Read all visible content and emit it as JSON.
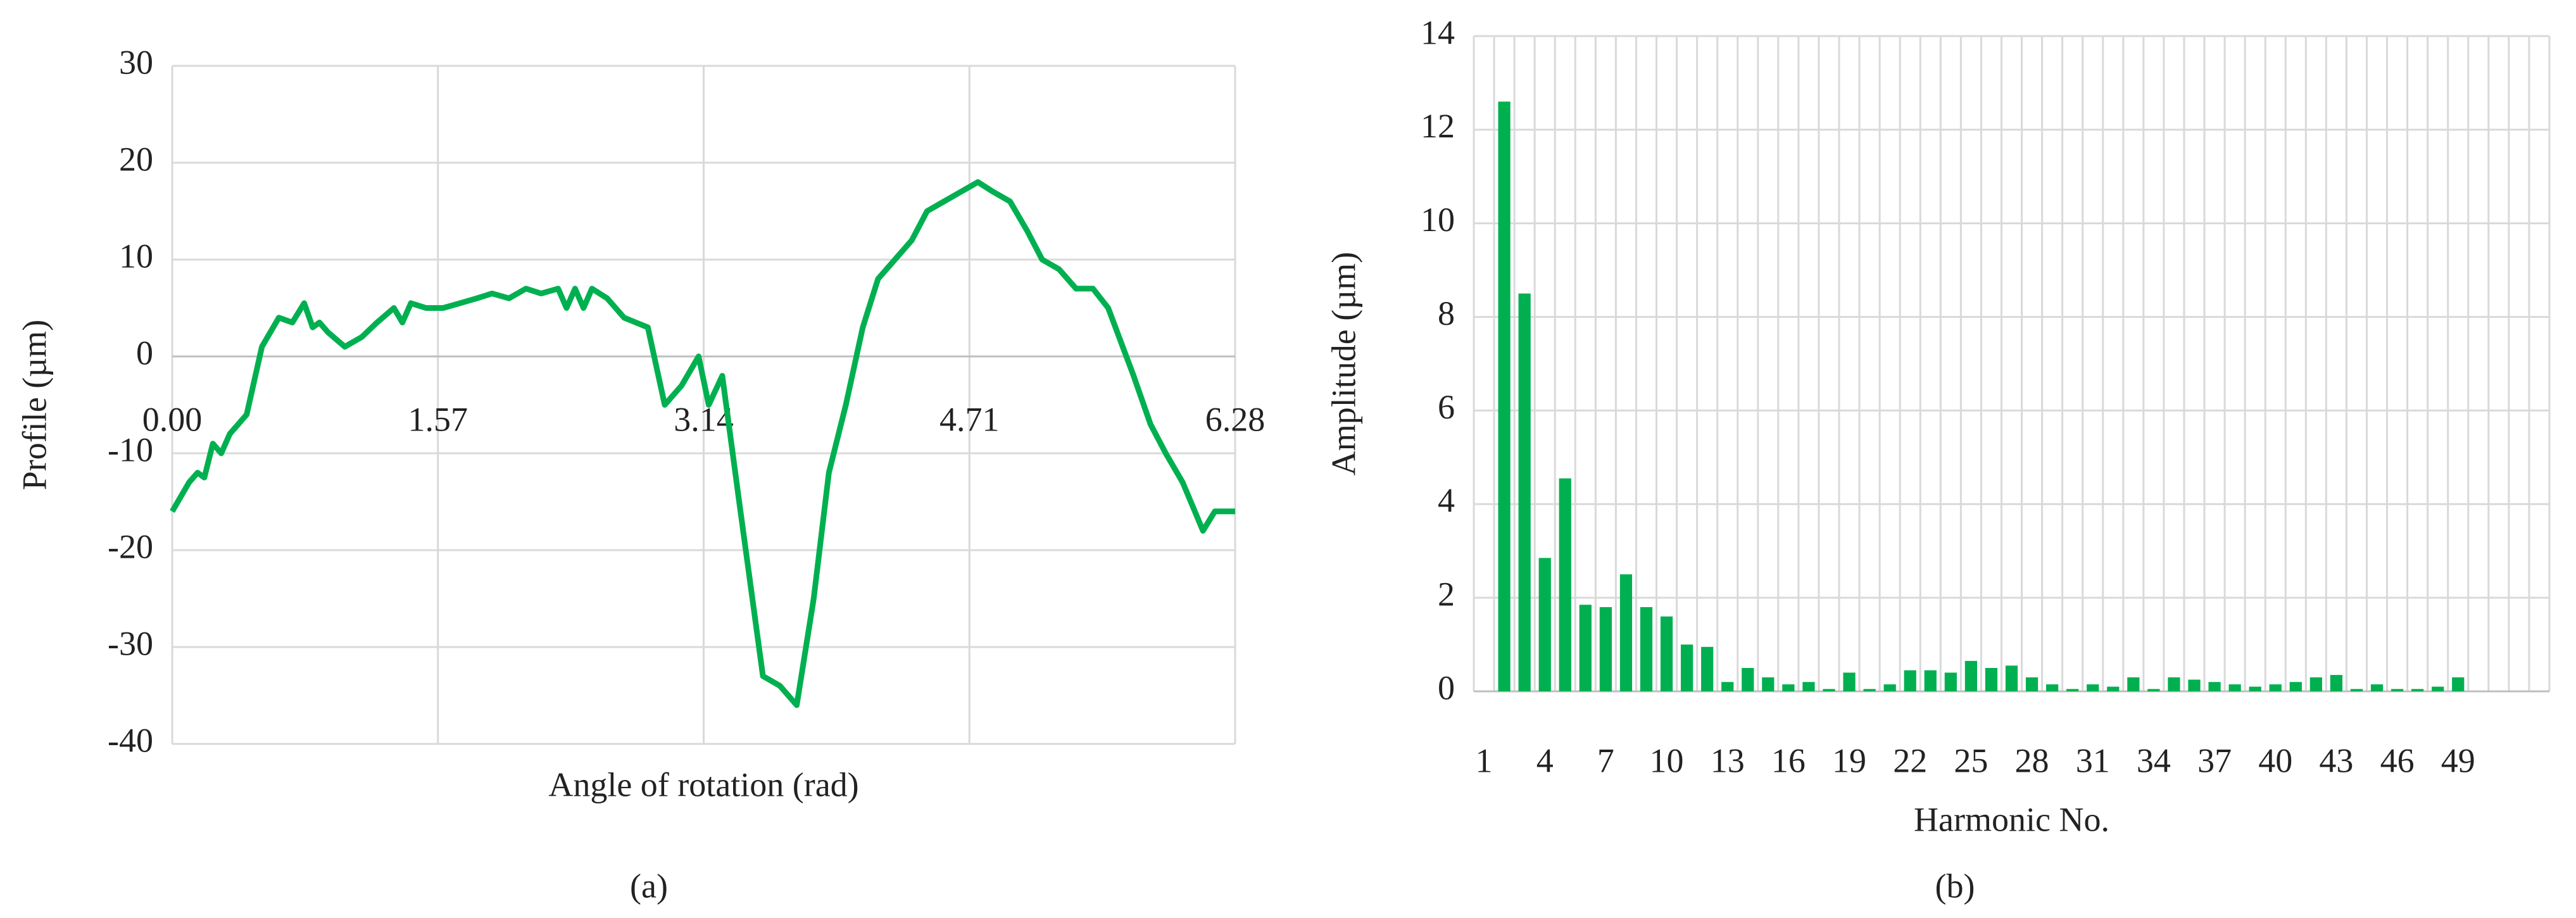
{
  "chart_data": [
    {
      "type": "line",
      "caption": "(a)",
      "x_label": "Angle of rotation (rad)",
      "y_label": "Profile (µm)",
      "xlim": [
        0,
        6.28
      ],
      "xticks": [
        {
          "value": 0,
          "label": "0.00"
        },
        1.57,
        3.14,
        4.71,
        6.28
      ],
      "ylim": [
        -40,
        30
      ],
      "yticks": [
        -40,
        -30,
        -20,
        -10,
        0,
        10,
        20,
        30
      ],
      "grid": true,
      "series": [
        {
          "color": "#00b050",
          "x": [
            0,
            0.1,
            0.15,
            0.19,
            0.24,
            0.29,
            0.34,
            0.39,
            0.44,
            0.53,
            0.63,
            0.71,
            0.78,
            0.83,
            0.87,
            0.92,
            1.02,
            1.12,
            1.21,
            1.31,
            1.36,
            1.41,
            1.5,
            1.6,
            1.7,
            1.8,
            1.89,
            1.99,
            2.09,
            2.18,
            2.28,
            2.33,
            2.38,
            2.43,
            2.48,
            2.57,
            2.67,
            2.81,
            2.91,
            3.01,
            3.11,
            3.17,
            3.25,
            3.35,
            3.49,
            3.59,
            3.69,
            3.79,
            3.88,
            3.98,
            4.08,
            4.17,
            4.27,
            4.37,
            4.46,
            4.56,
            4.66,
            4.76,
            4.85,
            4.95,
            5.05,
            5.14,
            5.24,
            5.34,
            5.44,
            5.53,
            5.68,
            5.78,
            5.87,
            5.97,
            6.09,
            6.16,
            6.28
          ],
          "values": [
            -16,
            -13,
            -12,
            -12.5,
            -9,
            -10,
            -8,
            -7,
            -6,
            1,
            4,
            3.5,
            5.5,
            3,
            3.5,
            2.5,
            1,
            2,
            3.5,
            5,
            3.5,
            5.5,
            5,
            5,
            5.5,
            6,
            6.5,
            6,
            7,
            6.5,
            7,
            5,
            7,
            5,
            7,
            6,
            4,
            3,
            -5,
            -3,
            0,
            -5,
            -2,
            -15,
            -33,
            -34,
            -36,
            -25,
            -12,
            -5,
            3,
            8,
            10,
            12,
            15,
            16,
            17,
            18,
            17,
            16,
            13,
            10,
            9,
            7,
            7,
            5,
            -2,
            -7,
            -10,
            -13,
            -18,
            -16,
            -16
          ]
        }
      ]
    },
    {
      "type": "bar",
      "caption": "(b)",
      "x_label": "Harmonic No.",
      "y_label": "Amplitude (µm)",
      "color": "#00b050",
      "ylim": [
        0,
        14
      ],
      "yticks": [
        0,
        2,
        4,
        6,
        8,
        10,
        12,
        14
      ],
      "grid": true,
      "categories": [
        "1",
        null,
        null,
        "4",
        null,
        null,
        "7",
        null,
        null,
        "10",
        null,
        null,
        "13",
        null,
        null,
        "16",
        null,
        null,
        "19",
        null,
        null,
        "22",
        null,
        null,
        "25",
        null,
        null,
        "28",
        null,
        null,
        "31",
        null,
        null,
        "34",
        null,
        null,
        "37",
        null,
        null,
        "40",
        null,
        null,
        "43",
        null,
        null,
        "46",
        null,
        null,
        "49",
        null,
        null,
        null,
        null
      ],
      "values": [
        0,
        12.6,
        8.5,
        2.85,
        4.55,
        1.85,
        1.8,
        2.5,
        1.8,
        1.6,
        1.0,
        0.95,
        0.2,
        0.5,
        0.3,
        0.15,
        0.2,
        0.05,
        0.4,
        0.05,
        0.15,
        0.45,
        0.45,
        0.4,
        0.65,
        0.5,
        0.55,
        0.3,
        0.15,
        0.05,
        0.15,
        0.1,
        0.3,
        0.05,
        0.3,
        0.25,
        0.2,
        0.15,
        0.1,
        0.15,
        0.2,
        0.3,
        0.35,
        0.05,
        0.15,
        0.05,
        0.05,
        0.1,
        0.3,
        0,
        0,
        0,
        0
      ]
    }
  ]
}
